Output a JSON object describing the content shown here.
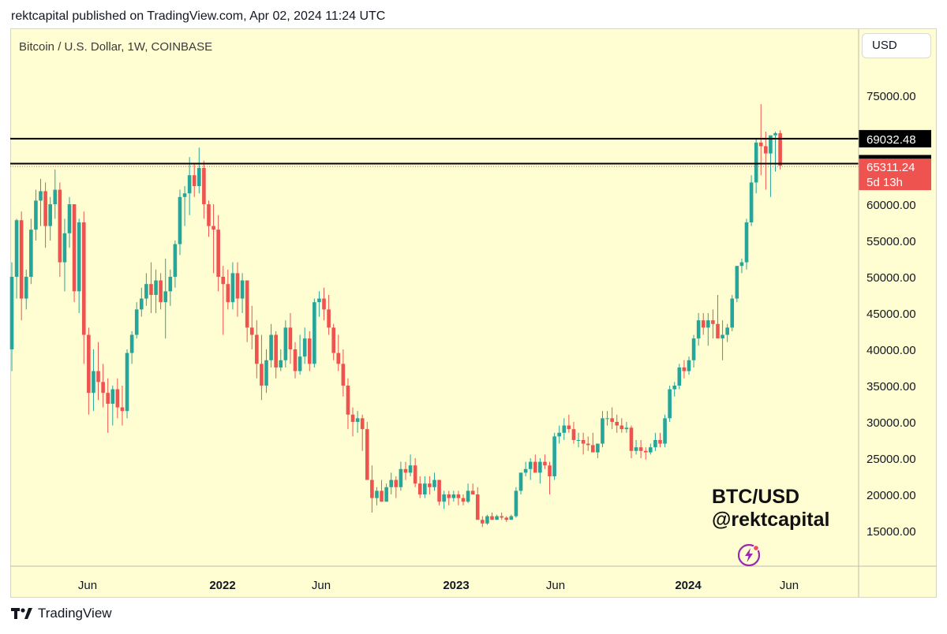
{
  "header": {
    "published": "rektcapital published on TradingView.com, Apr 02, 2024 11:24 UTC"
  },
  "chart": {
    "title": "Bitcoin / U.S. Dollar, 1W, COINBASE",
    "currency_button": "USD",
    "watermark_line1": "BTC/USD",
    "watermark_line2": "@rektcapital",
    "badge_icon": "lightning-icon"
  },
  "footer": {
    "brand": "TradingView",
    "logo_icon": "tradingview-logo-icon"
  },
  "colors": {
    "background": "#fffdd2",
    "up": "#26a69a",
    "down": "#ef5350",
    "level": "#000000",
    "badge": "#9c27b0"
  },
  "chart_data": {
    "type": "candlestick",
    "title": "Bitcoin / U.S. Dollar, 1W, COINBASE",
    "x_tick_labels": [
      "Jun",
      "2022",
      "Jun",
      "2023",
      "Jun",
      "2024",
      "Jun"
    ],
    "y_tick_labels": [
      "75000.00",
      "70000.00",
      "65000.00",
      "60000.00",
      "55000.00",
      "50000.00",
      "45000.00",
      "40000.00",
      "35000.00",
      "30000.00",
      "25000.00",
      "20000.00",
      "15000.00"
    ],
    "y_ticks": [
      75000,
      70000,
      65000,
      60000,
      55000,
      50000,
      45000,
      40000,
      35000,
      30000,
      25000,
      20000,
      15000
    ],
    "ylim": [
      10000,
      79000
    ],
    "horizontal_levels": [
      {
        "value": 69032.48,
        "label": "69032.48",
        "style": "solid"
      },
      {
        "value": 65596.82,
        "label": "65596.82",
        "style": "solid"
      }
    ],
    "last_price": {
      "value": 65311.24,
      "label": "65311.24",
      "countdown": "5d 13h"
    },
    "legend": "none",
    "grid": false,
    "candles_ohlc": [
      [
        40000,
        52000,
        37000,
        50000
      ],
      [
        50000,
        58000,
        47000,
        57800
      ],
      [
        57800,
        59000,
        44000,
        47000
      ],
      [
        47000,
        51000,
        45500,
        50000
      ],
      [
        50000,
        58000,
        49000,
        56500
      ],
      [
        56500,
        62000,
        55000,
        60500
      ],
      [
        60500,
        63500,
        57000,
        61800
      ],
      [
        61800,
        63000,
        54000,
        57000
      ],
      [
        57000,
        61000,
        55000,
        60000
      ],
      [
        60000,
        64800,
        58000,
        62000
      ],
      [
        62000,
        63000,
        50000,
        52000
      ],
      [
        52000,
        58000,
        48000,
        56000
      ],
      [
        56000,
        61000,
        54000,
        60000
      ],
      [
        60000,
        59000,
        46500,
        48000
      ],
      [
        48000,
        58000,
        45000,
        57500
      ],
      [
        57500,
        59000,
        38000,
        42000
      ],
      [
        42000,
        43000,
        31000,
        34000
      ],
      [
        34000,
        40000,
        31500,
        37000
      ],
      [
        37000,
        41000,
        33000,
        35500
      ],
      [
        35500,
        38000,
        32000,
        34000
      ],
      [
        34000,
        36000,
        28500,
        32500
      ],
      [
        32500,
        35000,
        29500,
        34500
      ],
      [
        34500,
        36000,
        30500,
        32000
      ],
      [
        32000,
        35000,
        29500,
        31500
      ],
      [
        31500,
        40000,
        30500,
        39500
      ],
      [
        39500,
        42500,
        38000,
        42000
      ],
      [
        42000,
        46500,
        41500,
        45500
      ],
      [
        45500,
        48500,
        44500,
        47000
      ],
      [
        47000,
        50500,
        46000,
        49000
      ],
      [
        49000,
        52000,
        45000,
        47500
      ],
      [
        47500,
        51000,
        45000,
        49500
      ],
      [
        49500,
        50500,
        45500,
        46500
      ],
      [
        46500,
        52500,
        41500,
        48000
      ],
      [
        48000,
        51000,
        46000,
        50000
      ],
      [
        50000,
        55000,
        48500,
        54500
      ],
      [
        54500,
        62000,
        53000,
        61000
      ],
      [
        61000,
        62500,
        57000,
        61500
      ],
      [
        61500,
        66500,
        58500,
        64000
      ],
      [
        64000,
        65500,
        61000,
        62500
      ],
      [
        62500,
        67800,
        61500,
        65000
      ],
      [
        65000,
        66000,
        58000,
        60000
      ],
      [
        60000,
        60500,
        55500,
        57000
      ],
      [
        57000,
        60000,
        50500,
        56500
      ],
      [
        56500,
        58500,
        48000,
        50000
      ],
      [
        50000,
        51500,
        42000,
        49000
      ],
      [
        49000,
        51000,
        45500,
        46500
      ],
      [
        46500,
        52000,
        45500,
        50500
      ],
      [
        50500,
        52000,
        44500,
        47000
      ],
      [
        47000,
        50500,
        45000,
        49500
      ],
      [
        49500,
        49000,
        41000,
        43000
      ],
      [
        43000,
        46000,
        40000,
        42000
      ],
      [
        42000,
        44000,
        36000,
        38000
      ],
      [
        38000,
        42000,
        33000,
        35000
      ],
      [
        35000,
        40000,
        34000,
        38500
      ],
      [
        38500,
        43500,
        37500,
        42000
      ],
      [
        42000,
        42500,
        36000,
        37500
      ],
      [
        37500,
        40000,
        37000,
        38500
      ],
      [
        38500,
        44000,
        37500,
        43000
      ],
      [
        43000,
        45000,
        38000,
        40000
      ],
      [
        40000,
        41000,
        36000,
        37000
      ],
      [
        37000,
        42000,
        36500,
        39000
      ],
      [
        39000,
        43000,
        38000,
        41500
      ],
      [
        41500,
        42500,
        37000,
        38000
      ],
      [
        38000,
        47000,
        37500,
        46500
      ],
      [
        46500,
        48000,
        44500,
        47000
      ],
      [
        47000,
        48500,
        44000,
        45500
      ],
      [
        45500,
        47500,
        42000,
        43000
      ],
      [
        43000,
        43500,
        38500,
        39500
      ],
      [
        39500,
        42000,
        37000,
        38000
      ],
      [
        38000,
        40000,
        33500,
        35000
      ],
      [
        35000,
        36000,
        29000,
        31000
      ],
      [
        31000,
        32000,
        28000,
        30000
      ],
      [
        30000,
        31500,
        28500,
        30500
      ],
      [
        30500,
        31000,
        26000,
        29000
      ],
      [
        29000,
        30000,
        24000,
        22000
      ],
      [
        22000,
        24000,
        17500,
        19500
      ],
      [
        19500,
        21000,
        18500,
        20500
      ],
      [
        20500,
        22000,
        19000,
        19000
      ],
      [
        19000,
        21500,
        19000,
        21000
      ],
      [
        21000,
        23000,
        20000,
        22000
      ],
      [
        22000,
        22500,
        19500,
        21000
      ],
      [
        21000,
        24500,
        20500,
        23500
      ],
      [
        23500,
        24500,
        22000,
        23000
      ],
      [
        23000,
        25500,
        22500,
        24000
      ],
      [
        24000,
        25000,
        21000,
        21500
      ],
      [
        21500,
        22500,
        19500,
        20000
      ],
      [
        20000,
        22500,
        19500,
        21500
      ],
      [
        21500,
        22500,
        20000,
        21000
      ],
      [
        21000,
        23000,
        20500,
        22000
      ],
      [
        22000,
        22000,
        18500,
        19000
      ],
      [
        19000,
        20500,
        18000,
        20000
      ],
      [
        20000,
        20500,
        18500,
        19500
      ],
      [
        19500,
        20500,
        19000,
        20000
      ],
      [
        20000,
        20500,
        18500,
        19500
      ],
      [
        19500,
        20000,
        18500,
        19000
      ],
      [
        19000,
        21500,
        18800,
        20500
      ],
      [
        20500,
        21500,
        20000,
        20000
      ],
      [
        20000,
        21000,
        18000,
        16500
      ],
      [
        16500,
        17000,
        15500,
        16000
      ],
      [
        16000,
        17200,
        15800,
        17000
      ],
      [
        17000,
        17500,
        16500,
        16500
      ],
      [
        16500,
        17200,
        16500,
        17000
      ],
      [
        17000,
        17500,
        16500,
        16800
      ],
      [
        16800,
        17000,
        16200,
        16500
      ],
      [
        16500,
        17200,
        16500,
        17000
      ],
      [
        17000,
        21000,
        16800,
        20500
      ],
      [
        20500,
        23000,
        20000,
        23000
      ],
      [
        23000,
        24500,
        22500,
        23500
      ],
      [
        23500,
        25000,
        22000,
        24500
      ],
      [
        24500,
        25500,
        23000,
        23000
      ],
      [
        23000,
        25000,
        21500,
        24500
      ],
      [
        24500,
        25500,
        23500,
        24000
      ],
      [
        24000,
        24500,
        20000,
        22500
      ],
      [
        22500,
        28500,
        22000,
        28000
      ],
      [
        28000,
        29500,
        27000,
        28500
      ],
      [
        28500,
        30500,
        27500,
        29500
      ],
      [
        29500,
        31000,
        28500,
        29000
      ],
      [
        29000,
        30000,
        27000,
        27500
      ],
      [
        27500,
        28500,
        26500,
        27500
      ],
      [
        27500,
        28500,
        25500,
        27000
      ],
      [
        27000,
        28000,
        26000,
        26800
      ],
      [
        26800,
        28500,
        26000,
        25800
      ],
      [
        25800,
        27000,
        25000,
        27000
      ],
      [
        27000,
        31500,
        26500,
        30500
      ],
      [
        30500,
        31500,
        29500,
        30500
      ],
      [
        30500,
        32000,
        29000,
        30000
      ],
      [
        30000,
        31000,
        28500,
        29500
      ],
      [
        29500,
        30500,
        28500,
        29000
      ],
      [
        29000,
        30000,
        28500,
        29200
      ],
      [
        29200,
        29500,
        25000,
        26000
      ],
      [
        26000,
        27500,
        25500,
        26500
      ],
      [
        26500,
        27500,
        25000,
        26000
      ],
      [
        26000,
        26500,
        24800,
        25800
      ],
      [
        25800,
        27000,
        25500,
        26500
      ],
      [
        26500,
        28500,
        26000,
        27500
      ],
      [
        27500,
        28500,
        26500,
        27000
      ],
      [
        27000,
        31000,
        26500,
        30500
      ],
      [
        30500,
        35000,
        30000,
        34500
      ],
      [
        34500,
        35500,
        33500,
        35000
      ],
      [
        35000,
        38000,
        34500,
        37500
      ],
      [
        37500,
        38500,
        36000,
        37000
      ],
      [
        37000,
        39000,
        36500,
        38500
      ],
      [
        38500,
        42000,
        37500,
        41500
      ],
      [
        41500,
        45000,
        40500,
        44000
      ],
      [
        44000,
        45000,
        42000,
        43000
      ],
      [
        43000,
        45000,
        40500,
        44000
      ],
      [
        44000,
        45500,
        41500,
        43500
      ],
      [
        43500,
        47500,
        42500,
        41500
      ],
      [
        41500,
        44000,
        38500,
        42000
      ],
      [
        42000,
        43500,
        41000,
        43000
      ],
      [
        43000,
        47500,
        42500,
        47000
      ],
      [
        47000,
        51500,
        46500,
        51500
      ],
      [
        51500,
        52500,
        50500,
        52000
      ],
      [
        52000,
        58000,
        51000,
        57500
      ],
      [
        57500,
        64000,
        57000,
        63000
      ],
      [
        63000,
        69000,
        61500,
        68500
      ],
      [
        68500,
        73800,
        64000,
        68000
      ],
      [
        68000,
        70000,
        62000,
        67000
      ],
      [
        67000,
        69000,
        61000,
        69500
      ],
      [
        69500,
        70000,
        64500,
        69800
      ],
      [
        69800,
        70200,
        64800,
        65311
      ]
    ]
  }
}
